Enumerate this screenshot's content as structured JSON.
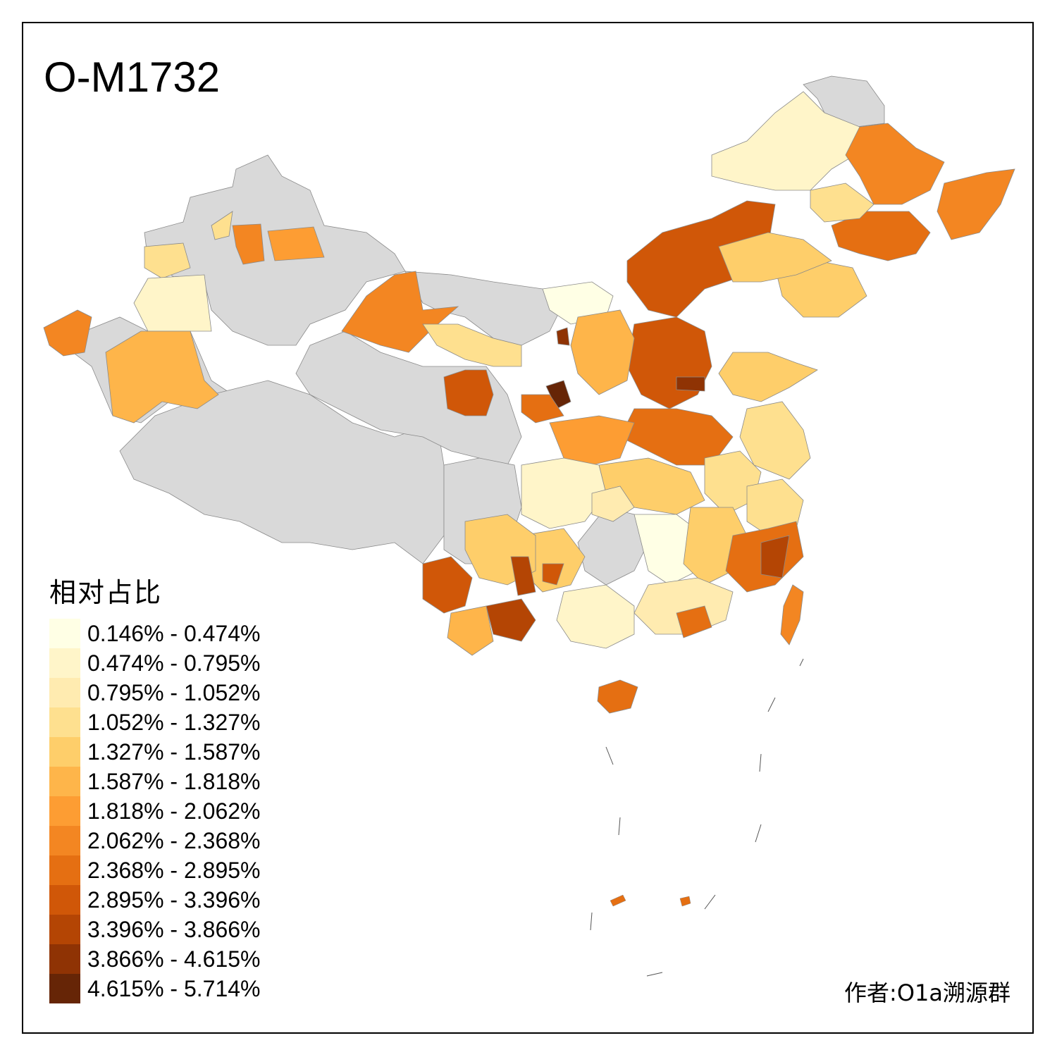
{
  "map": {
    "title": "O-M1732",
    "legend_title": "相对占比",
    "legend": [
      {
        "label": "0.146% - 0.474%",
        "color": "#ffffe5"
      },
      {
        "label": "0.474% - 0.795%",
        "color": "#fff5c9"
      },
      {
        "label": "0.795% - 1.052%",
        "color": "#ffebb0"
      },
      {
        "label": "1.052% - 1.327%",
        "color": "#fee08f"
      },
      {
        "label": "1.327% - 1.587%",
        "color": "#fece6a"
      },
      {
        "label": "1.587% - 1.818%",
        "color": "#feb54a"
      },
      {
        "label": "1.818% - 2.062%",
        "color": "#fd9d33"
      },
      {
        "label": "2.062% - 2.368%",
        "color": "#f38622"
      },
      {
        "label": "2.368% - 2.895%",
        "color": "#e56f12"
      },
      {
        "label": "2.895% - 3.396%",
        "color": "#d05708"
      },
      {
        "label": "3.396% - 3.866%",
        "color": "#b44504"
      },
      {
        "label": "3.866% - 4.615%",
        "color": "#8f3304"
      },
      {
        "label": "4.615% - 5.714%",
        "color": "#662506"
      }
    ],
    "no_data_color": "#d9d9d9",
    "author": "作者:O1a溯源群"
  }
}
